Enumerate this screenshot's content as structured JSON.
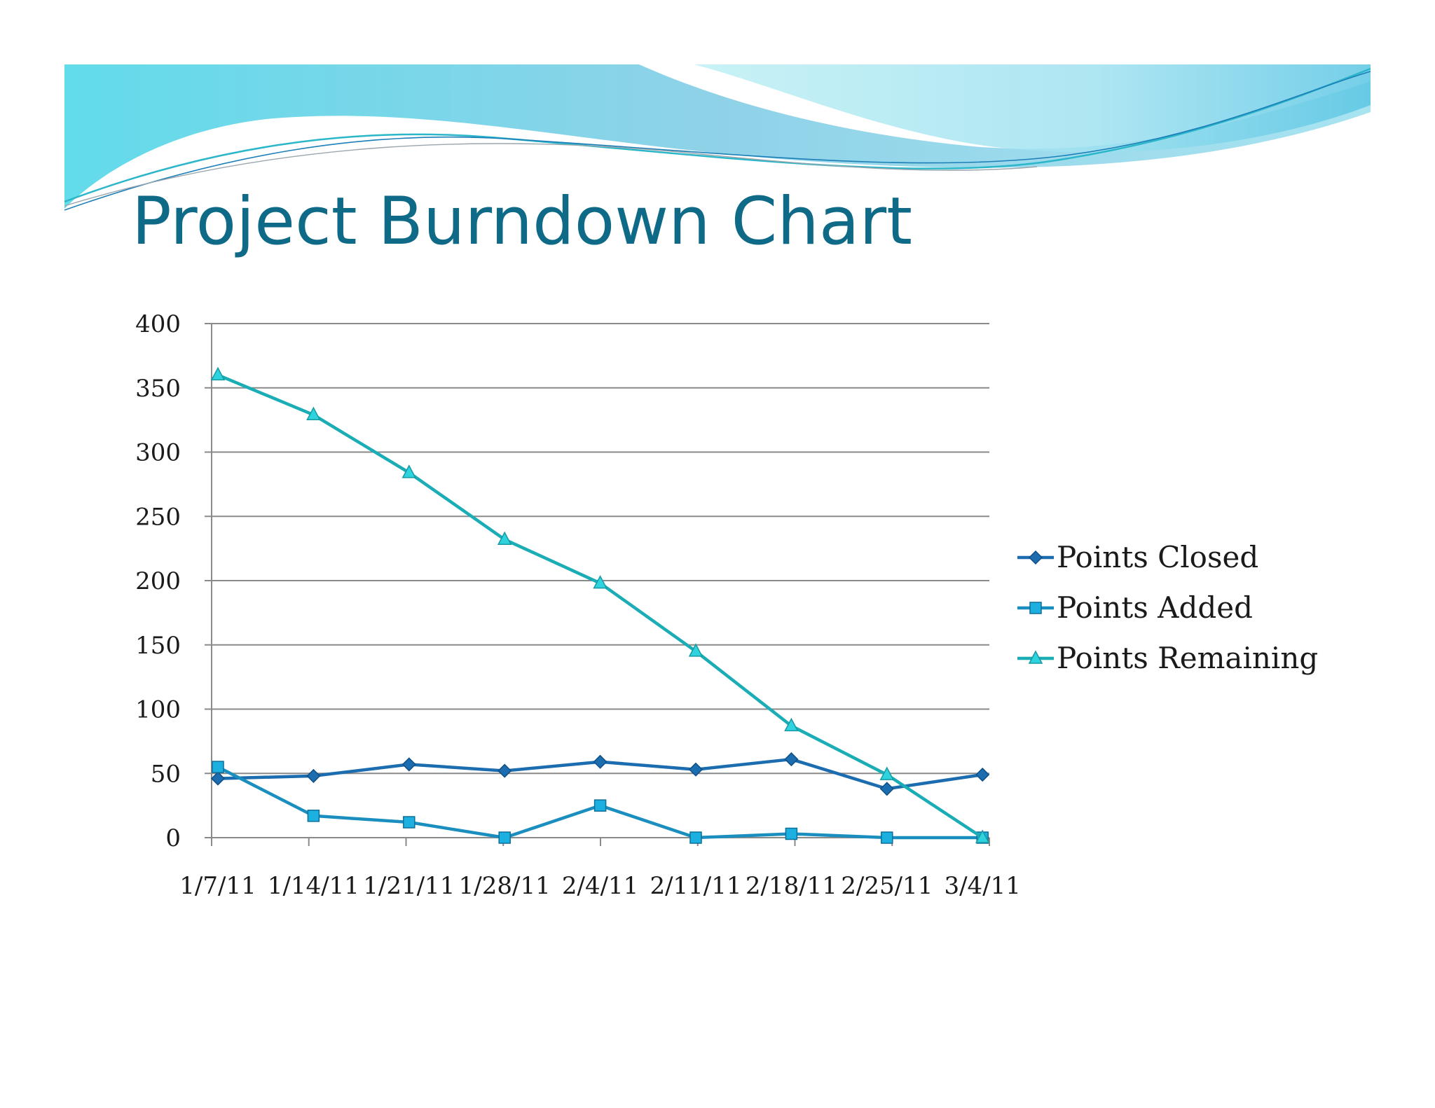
{
  "slide": {
    "title": "Project Burndown Chart"
  },
  "chart_data": {
    "type": "line",
    "title": "",
    "xlabel": "",
    "ylabel": "",
    "categories": [
      "1/7/11",
      "1/14/11",
      "1/21/11",
      "1/28/11",
      "2/4/11",
      "2/11/11",
      "2/18/11",
      "2/25/11",
      "3/4/11"
    ],
    "ylim": [
      0,
      400
    ],
    "yticks": [
      0,
      50,
      100,
      150,
      200,
      250,
      300,
      350,
      400
    ],
    "grid": true,
    "legend_position": "right",
    "series": [
      {
        "name": "Points Closed",
        "marker": "diamond",
        "color": "#1b6db0",
        "values": [
          46,
          48,
          57,
          52,
          59,
          53,
          61,
          38,
          49
        ]
      },
      {
        "name": "Points Added",
        "marker": "square",
        "color": "#1a8fbf",
        "values": [
          55,
          17,
          12,
          0,
          25,
          0,
          3,
          0,
          0
        ]
      },
      {
        "name": "Points Remaining",
        "marker": "triangle",
        "color": "#1aadb5",
        "values": [
          360,
          329,
          284,
          232,
          198,
          145,
          87,
          49,
          0
        ]
      }
    ]
  }
}
